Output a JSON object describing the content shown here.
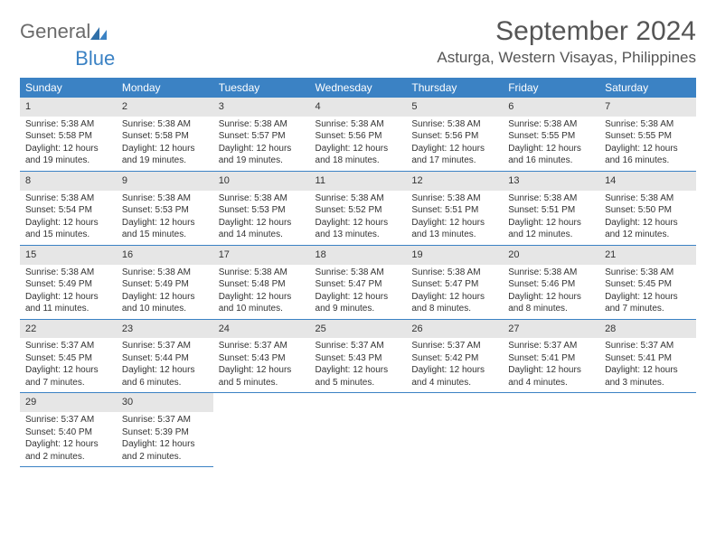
{
  "brand": {
    "general": "General",
    "blue": "Blue"
  },
  "title": "September 2024",
  "location": "Asturga, Western Visayas, Philippines",
  "colors": {
    "header_bg": "#3b82c4",
    "header_text": "#ffffff",
    "daynum_bg": "#e6e6e6",
    "border": "#3b82c4",
    "title_color": "#555555",
    "logo_gray": "#6b6b6b",
    "logo_blue": "#3b82c4"
  },
  "weekdays": [
    "Sunday",
    "Monday",
    "Tuesday",
    "Wednesday",
    "Thursday",
    "Friday",
    "Saturday"
  ],
  "days": [
    {
      "n": 1,
      "sunrise": "5:38 AM",
      "sunset": "5:58 PM",
      "dl1": "Daylight: 12 hours",
      "dl2": "and 19 minutes."
    },
    {
      "n": 2,
      "sunrise": "5:38 AM",
      "sunset": "5:58 PM",
      "dl1": "Daylight: 12 hours",
      "dl2": "and 19 minutes."
    },
    {
      "n": 3,
      "sunrise": "5:38 AM",
      "sunset": "5:57 PM",
      "dl1": "Daylight: 12 hours",
      "dl2": "and 19 minutes."
    },
    {
      "n": 4,
      "sunrise": "5:38 AM",
      "sunset": "5:56 PM",
      "dl1": "Daylight: 12 hours",
      "dl2": "and 18 minutes."
    },
    {
      "n": 5,
      "sunrise": "5:38 AM",
      "sunset": "5:56 PM",
      "dl1": "Daylight: 12 hours",
      "dl2": "and 17 minutes."
    },
    {
      "n": 6,
      "sunrise": "5:38 AM",
      "sunset": "5:55 PM",
      "dl1": "Daylight: 12 hours",
      "dl2": "and 16 minutes."
    },
    {
      "n": 7,
      "sunrise": "5:38 AM",
      "sunset": "5:55 PM",
      "dl1": "Daylight: 12 hours",
      "dl2": "and 16 minutes."
    },
    {
      "n": 8,
      "sunrise": "5:38 AM",
      "sunset": "5:54 PM",
      "dl1": "Daylight: 12 hours",
      "dl2": "and 15 minutes."
    },
    {
      "n": 9,
      "sunrise": "5:38 AM",
      "sunset": "5:53 PM",
      "dl1": "Daylight: 12 hours",
      "dl2": "and 15 minutes."
    },
    {
      "n": 10,
      "sunrise": "5:38 AM",
      "sunset": "5:53 PM",
      "dl1": "Daylight: 12 hours",
      "dl2": "and 14 minutes."
    },
    {
      "n": 11,
      "sunrise": "5:38 AM",
      "sunset": "5:52 PM",
      "dl1": "Daylight: 12 hours",
      "dl2": "and 13 minutes."
    },
    {
      "n": 12,
      "sunrise": "5:38 AM",
      "sunset": "5:51 PM",
      "dl1": "Daylight: 12 hours",
      "dl2": "and 13 minutes."
    },
    {
      "n": 13,
      "sunrise": "5:38 AM",
      "sunset": "5:51 PM",
      "dl1": "Daylight: 12 hours",
      "dl2": "and 12 minutes."
    },
    {
      "n": 14,
      "sunrise": "5:38 AM",
      "sunset": "5:50 PM",
      "dl1": "Daylight: 12 hours",
      "dl2": "and 12 minutes."
    },
    {
      "n": 15,
      "sunrise": "5:38 AM",
      "sunset": "5:49 PM",
      "dl1": "Daylight: 12 hours",
      "dl2": "and 11 minutes."
    },
    {
      "n": 16,
      "sunrise": "5:38 AM",
      "sunset": "5:49 PM",
      "dl1": "Daylight: 12 hours",
      "dl2": "and 10 minutes."
    },
    {
      "n": 17,
      "sunrise": "5:38 AM",
      "sunset": "5:48 PM",
      "dl1": "Daylight: 12 hours",
      "dl2": "and 10 minutes."
    },
    {
      "n": 18,
      "sunrise": "5:38 AM",
      "sunset": "5:47 PM",
      "dl1": "Daylight: 12 hours",
      "dl2": "and 9 minutes."
    },
    {
      "n": 19,
      "sunrise": "5:38 AM",
      "sunset": "5:47 PM",
      "dl1": "Daylight: 12 hours",
      "dl2": "and 8 minutes."
    },
    {
      "n": 20,
      "sunrise": "5:38 AM",
      "sunset": "5:46 PM",
      "dl1": "Daylight: 12 hours",
      "dl2": "and 8 minutes."
    },
    {
      "n": 21,
      "sunrise": "5:38 AM",
      "sunset": "5:45 PM",
      "dl1": "Daylight: 12 hours",
      "dl2": "and 7 minutes."
    },
    {
      "n": 22,
      "sunrise": "5:37 AM",
      "sunset": "5:45 PM",
      "dl1": "Daylight: 12 hours",
      "dl2": "and 7 minutes."
    },
    {
      "n": 23,
      "sunrise": "5:37 AM",
      "sunset": "5:44 PM",
      "dl1": "Daylight: 12 hours",
      "dl2": "and 6 minutes."
    },
    {
      "n": 24,
      "sunrise": "5:37 AM",
      "sunset": "5:43 PM",
      "dl1": "Daylight: 12 hours",
      "dl2": "and 5 minutes."
    },
    {
      "n": 25,
      "sunrise": "5:37 AM",
      "sunset": "5:43 PM",
      "dl1": "Daylight: 12 hours",
      "dl2": "and 5 minutes."
    },
    {
      "n": 26,
      "sunrise": "5:37 AM",
      "sunset": "5:42 PM",
      "dl1": "Daylight: 12 hours",
      "dl2": "and 4 minutes."
    },
    {
      "n": 27,
      "sunrise": "5:37 AM",
      "sunset": "5:41 PM",
      "dl1": "Daylight: 12 hours",
      "dl2": "and 4 minutes."
    },
    {
      "n": 28,
      "sunrise": "5:37 AM",
      "sunset": "5:41 PM",
      "dl1": "Daylight: 12 hours",
      "dl2": "and 3 minutes."
    },
    {
      "n": 29,
      "sunrise": "5:37 AM",
      "sunset": "5:40 PM",
      "dl1": "Daylight: 12 hours",
      "dl2": "and 2 minutes."
    },
    {
      "n": 30,
      "sunrise": "5:37 AM",
      "sunset": "5:39 PM",
      "dl1": "Daylight: 12 hours",
      "dl2": "and 2 minutes."
    }
  ],
  "labels": {
    "sunrise": "Sunrise: ",
    "sunset": "Sunset: "
  },
  "layout": {
    "cols": 7,
    "rows": 5,
    "start_col": 0
  }
}
